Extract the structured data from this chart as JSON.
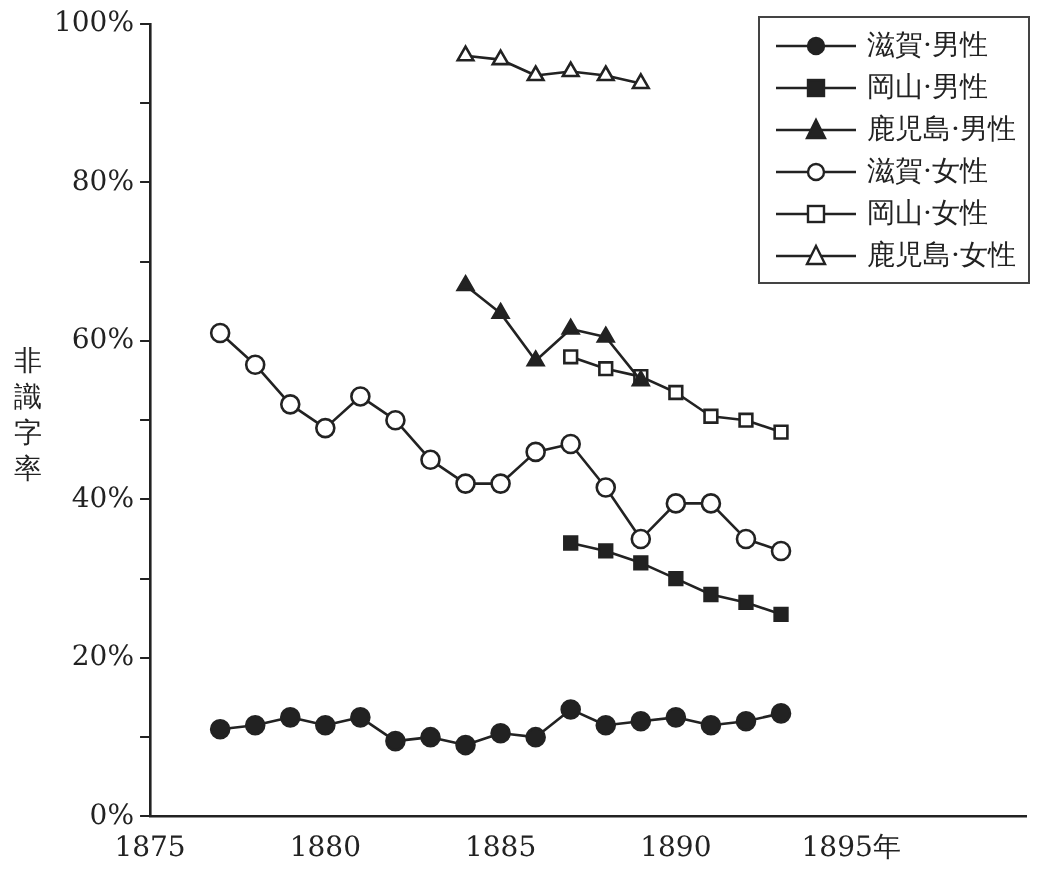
{
  "chart_data": {
    "type": "line",
    "ylabel": "非識字率",
    "xlim": [
      1875,
      1900
    ],
    "xticks": [
      1875,
      1880,
      1885,
      1890,
      {
        "value": 1895,
        "label": "1895年"
      }
    ],
    "ylim": [
      0,
      100
    ],
    "yticks": [
      {
        "value": 0,
        "label": "0%"
      },
      {
        "value": 10,
        "label": null
      },
      {
        "value": 20,
        "label": "20%"
      },
      {
        "value": 30,
        "label": null
      },
      {
        "value": 40,
        "label": "40%"
      },
      {
        "value": 50,
        "label": null
      },
      {
        "value": 60,
        "label": "60%"
      },
      {
        "value": 70,
        "label": null
      },
      {
        "value": 80,
        "label": "80%"
      },
      {
        "value": 90,
        "label": null
      },
      {
        "value": 100,
        "label": "100%"
      }
    ],
    "grid": false,
    "legend": "top right",
    "line_style": "solid",
    "series": [
      {
        "name": "滋賀·男性",
        "color": "#222222",
        "marker": "circle",
        "x": [
          1877,
          1878,
          1879,
          1880,
          1881,
          1882,
          1883,
          1884,
          1885,
          1886,
          1887,
          1888,
          1889,
          1890,
          1891,
          1892,
          1893
        ],
        "values": [
          11,
          11.5,
          12.5,
          11.5,
          12.5,
          9.5,
          10,
          9,
          10.5,
          10,
          13.5,
          11.5,
          12,
          12.5,
          11.5,
          12,
          13
        ]
      },
      {
        "name": "岡山·男性",
        "color": "#222222",
        "marker": "square",
        "x": [
          1887,
          1888,
          1889,
          1890,
          1891,
          1892,
          1893
        ],
        "values": [
          34.5,
          33.5,
          32,
          30,
          28,
          27,
          25.5
        ]
      },
      {
        "name": "鹿児島·男性",
        "color": "#222222",
        "marker": "triangle",
        "x": [
          1884,
          1885,
          1886,
          1887,
          1888,
          1889
        ],
        "values": [
          67,
          63.5,
          57.5,
          61.5,
          60.5,
          55
        ]
      },
      {
        "name": "滋賀·女性",
        "color": "#ffffff",
        "marker": "circle",
        "x": [
          1877,
          1878,
          1879,
          1880,
          1881,
          1882,
          1883,
          1884,
          1885,
          1886,
          1887,
          1888,
          1889,
          1890,
          1891,
          1892,
          1893
        ],
        "values": [
          61,
          57,
          52,
          49,
          53,
          50,
          45,
          42,
          42,
          46,
          47,
          41.5,
          35,
          39.5,
          39.5,
          35,
          33.5
        ]
      },
      {
        "name": "岡山·女性",
        "color": "#ffffff",
        "marker": "square",
        "x": [
          1887,
          1888,
          1889,
          1890,
          1891,
          1892,
          1893
        ],
        "values": [
          58,
          56.5,
          55.5,
          53.5,
          50.5,
          50,
          48.5
        ]
      },
      {
        "name": "鹿児島·女性",
        "color": "#ffffff",
        "marker": "triangle",
        "x": [
          1884,
          1885,
          1886,
          1887,
          1888,
          1889
        ],
        "values": [
          96,
          95.5,
          93.5,
          94,
          93.5,
          92.5
        ]
      }
    ]
  }
}
